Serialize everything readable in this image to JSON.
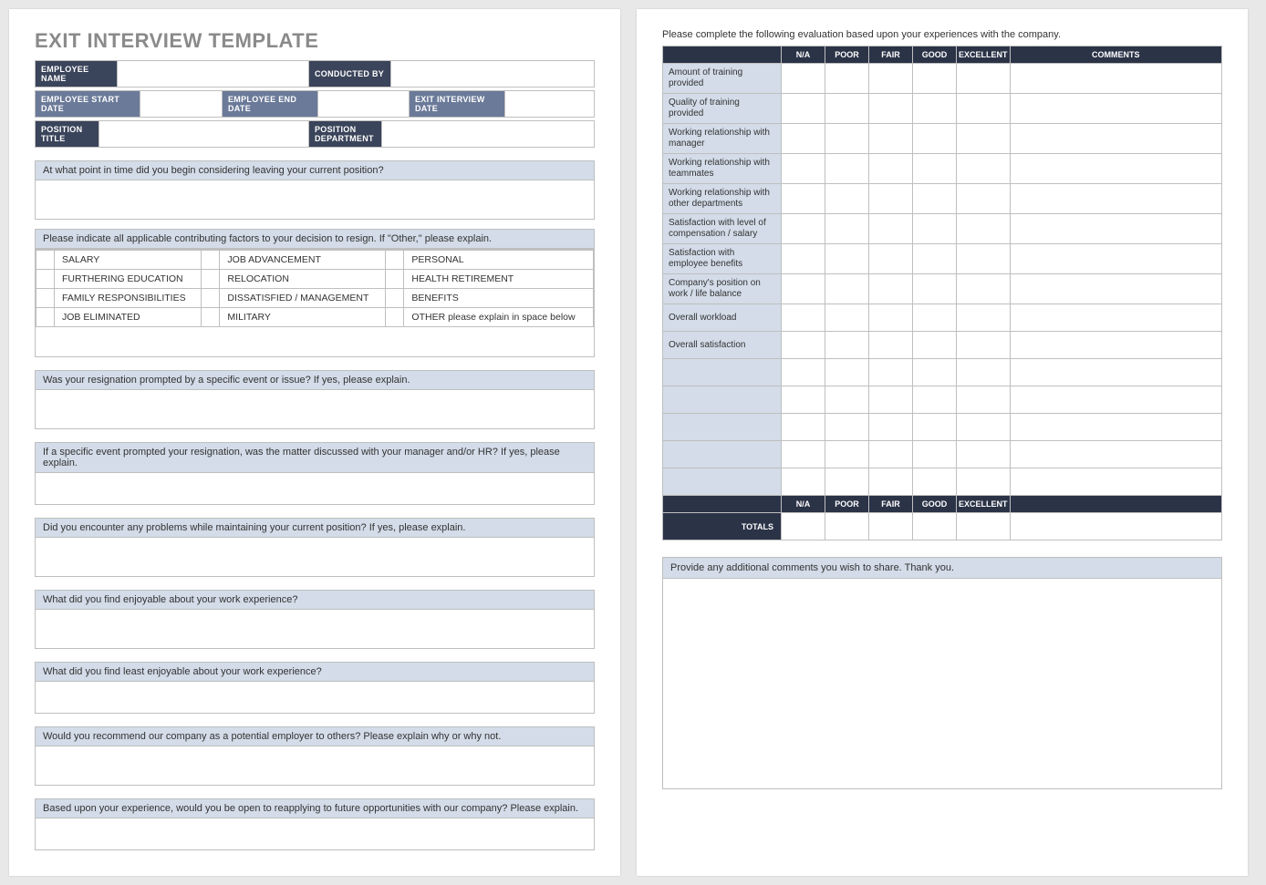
{
  "title": "EXIT INTERVIEW TEMPLATE",
  "colors": {
    "page_bg": "#e8e8e8",
    "sheet_bg": "#ffffff",
    "title_color": "#8a8a8a",
    "dark_header": "#3a445a",
    "mid_header": "#6b7a99",
    "question_bg": "#d3dce8",
    "eval_header": "#2b3347",
    "border": "#bfbfbf"
  },
  "header": {
    "row1": {
      "employee_name": "EMPLOYEE NAME",
      "conducted_by": "CONDUCTED BY"
    },
    "row2": {
      "start_date": "EMPLOYEE START DATE",
      "end_date": "EMPLOYEE END DATE",
      "interview_date": "EXIT INTERVIEW DATE"
    },
    "row3": {
      "position_title": "POSITION TITLE",
      "position_dept": "POSITION DEPARTMENT"
    }
  },
  "questions": {
    "q1": "At what point in time did you begin considering leaving your current position?",
    "q2": "Please indicate all applicable contributing factors to your decision to resign. If \"Other,\" please explain.",
    "q3": "Was your resignation prompted by a specific event or issue? If yes, please explain.",
    "q4": "If a specific event prompted your resignation, was the matter discussed with your manager and/or HR? If yes, please explain.",
    "q5": "Did you encounter any problems while maintaining your current position?  If yes, please explain.",
    "q6": "What did you find enjoyable about your work experience?",
    "q7": "What did you find least enjoyable about your work experience?",
    "q8": "Would you recommend our company as a potential employer to others? Please explain why or why not.",
    "q9": "Based upon your experience, would you be open to reapplying to future opportunities with our company?  Please explain."
  },
  "factors": {
    "rows": [
      [
        "SALARY",
        "JOB ADVANCEMENT",
        "PERSONAL"
      ],
      [
        "FURTHERING EDUCATION",
        "RELOCATION",
        "HEALTH RETIREMENT"
      ],
      [
        "FAMILY RESPONSIBILITIES",
        "DISSATISFIED / MANAGEMENT",
        "BENEFITS"
      ],
      [
        "JOB ELIMINATED",
        "MILITARY",
        "OTHER please explain in space below"
      ]
    ]
  },
  "page2": {
    "instruction": "Please complete the following evaluation based upon your experiences with the company.",
    "rating_cols": [
      "N/A",
      "POOR",
      "FAIR",
      "GOOD",
      "EXCELLENT"
    ],
    "comments_col": "COMMENTS",
    "rows": [
      "Amount of training provided",
      "Quality of training provided",
      "Working relationship with manager",
      "Working relationship with teammates",
      "Working relationship with other departments",
      "Satisfaction with level of compensation / salary",
      "Satisfaction with employee benefits",
      "Company's position on work / life balance",
      "Overall workload",
      "Overall satisfaction"
    ],
    "blank_rows": 5,
    "totals_label": "TOTALS",
    "comments_prompt": "Provide any additional comments you wish to share.  Thank you."
  }
}
